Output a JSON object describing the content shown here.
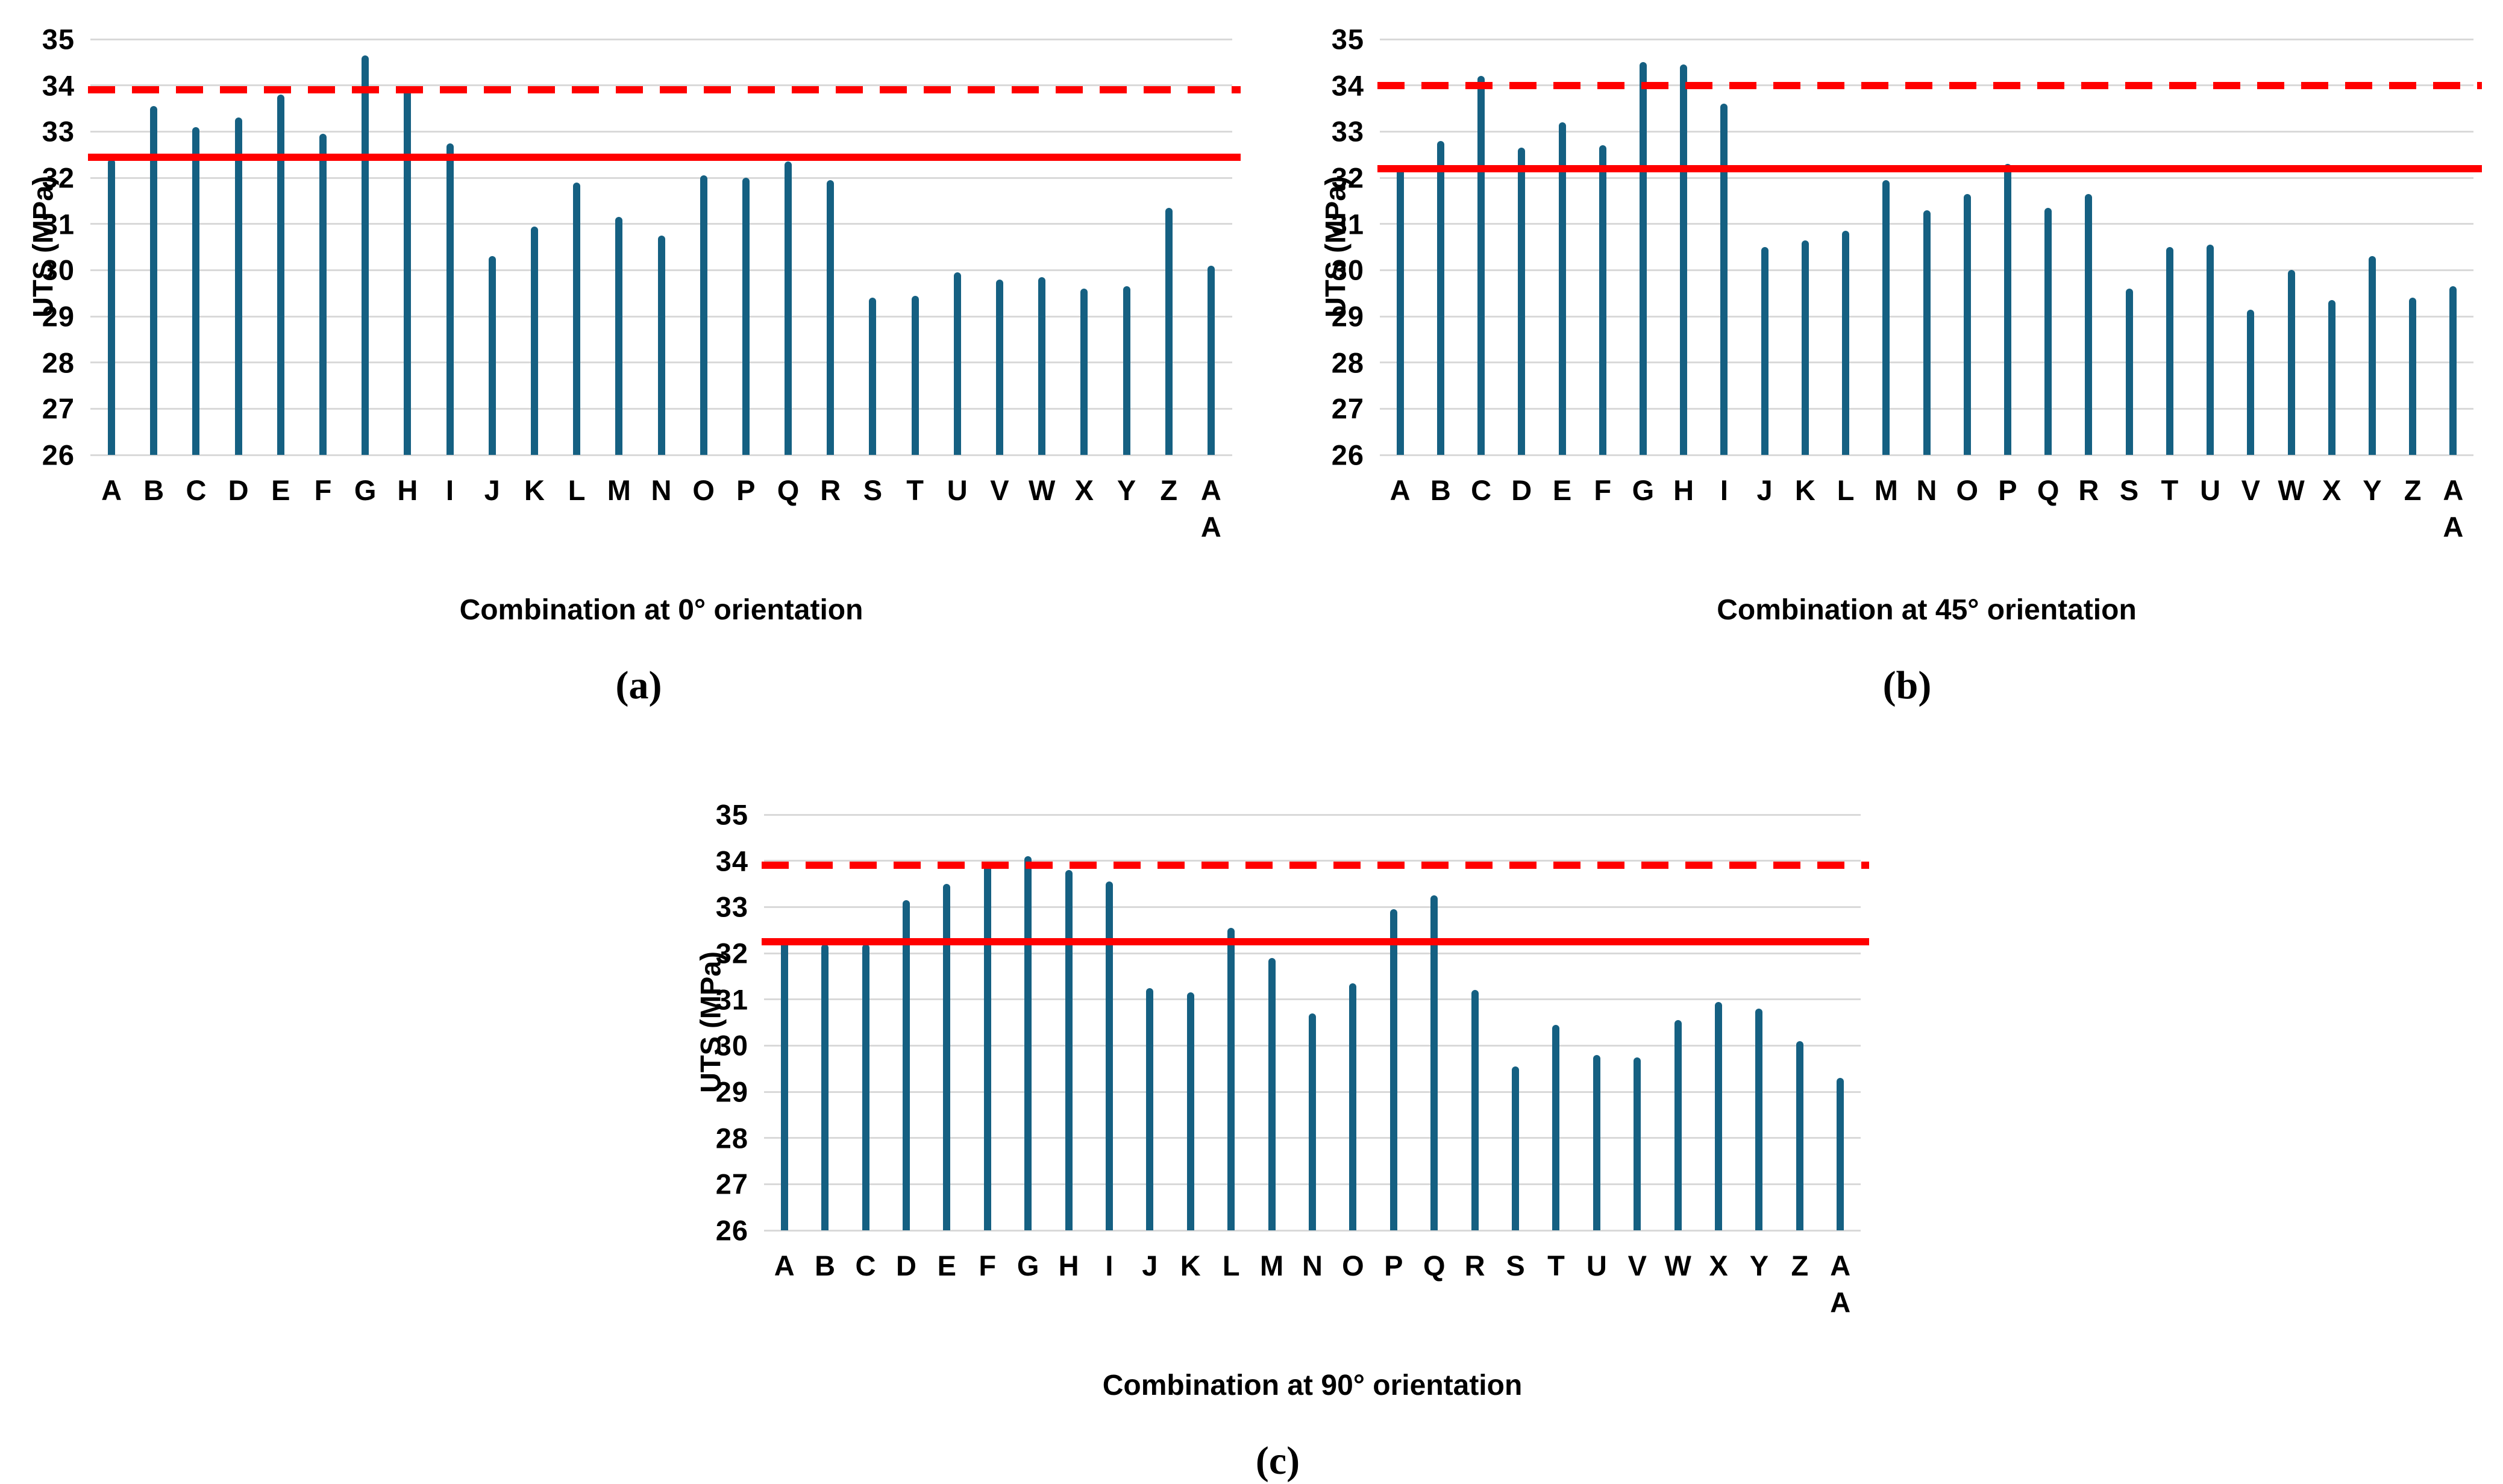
{
  "style": {
    "background_color": "#FFFFFF",
    "bar_color": "#156082",
    "gridline_color": "#D9D9D9",
    "reference_line_color": "#FF0000",
    "text_color": "#000000"
  },
  "chart_data": [
    {
      "id": "a",
      "type": "bar",
      "title": "Combination at 0° orientation",
      "caption": "(a)",
      "ylabel": "UTS (MPa)",
      "ylim": [
        26,
        35
      ],
      "yticks": [
        26,
        27,
        28,
        29,
        30,
        31,
        32,
        33,
        34,
        35
      ],
      "grid": true,
      "legend": false,
      "categories": [
        "A",
        "B",
        "C",
        "D",
        "E",
        "F",
        "G",
        "H",
        "I",
        "J",
        "K",
        "L",
        "M",
        "N",
        "O",
        "P",
        "Q",
        "R",
        "S",
        "T",
        "U",
        "V",
        "W",
        "X",
        "Y",
        "Z",
        "AA"
      ],
      "values": [
        32.4,
        33.55,
        33.1,
        33.3,
        33.8,
        32.95,
        34.65,
        33.95,
        32.75,
        30.3,
        30.95,
        31.9,
        31.15,
        30.75,
        32.05,
        32.0,
        32.35,
        31.95,
        29.4,
        29.45,
        29.95,
        29.8,
        29.85,
        29.6,
        29.65,
        31.35,
        30.1
      ],
      "solid_reference_line": 32.45,
      "dashed_reference_line": 33.9
    },
    {
      "id": "b",
      "type": "bar",
      "title": "Combination at 45° orientation",
      "caption": "(b)",
      "ylabel": "UTS (MPa)",
      "ylim": [
        26,
        35
      ],
      "yticks": [
        26,
        27,
        28,
        29,
        30,
        31,
        32,
        33,
        34,
        35
      ],
      "grid": true,
      "legend": false,
      "categories": [
        "A",
        "B",
        "C",
        "D",
        "E",
        "F",
        "G",
        "H",
        "I",
        "J",
        "K",
        "L",
        "M",
        "N",
        "O",
        "P",
        "Q",
        "R",
        "S",
        "T",
        "U",
        "V",
        "W",
        "X",
        "Y",
        "Z",
        "AA"
      ],
      "values": [
        32.25,
        32.8,
        34.2,
        32.65,
        33.2,
        32.7,
        34.5,
        34.45,
        33.6,
        30.5,
        30.65,
        30.85,
        31.95,
        31.3,
        31.65,
        32.3,
        31.35,
        31.65,
        29.6,
        30.5,
        30.55,
        29.15,
        30.0,
        29.35,
        30.3,
        29.4,
        29.65
      ],
      "solid_reference_line": 32.2,
      "dashed_reference_line": 34.0
    },
    {
      "id": "c",
      "type": "bar",
      "title": "Combination at 90° orientation",
      "caption": "(c)",
      "ylabel": "UTS (MPa)",
      "ylim": [
        26,
        35
      ],
      "yticks": [
        26,
        27,
        28,
        29,
        30,
        31,
        32,
        33,
        34,
        35
      ],
      "grid": true,
      "legend": false,
      "categories": [
        "A",
        "B",
        "C",
        "D",
        "E",
        "F",
        "G",
        "H",
        "I",
        "J",
        "K",
        "L",
        "M",
        "N",
        "O",
        "P",
        "Q",
        "R",
        "S",
        "T",
        "U",
        "V",
        "W",
        "X",
        "Y",
        "Z",
        "AA"
      ],
      "values": [
        32.3,
        32.2,
        32.2,
        33.15,
        33.5,
        33.9,
        34.1,
        33.8,
        33.55,
        31.25,
        31.15,
        32.55,
        31.9,
        30.7,
        31.35,
        32.95,
        33.25,
        31.2,
        29.55,
        30.45,
        29.8,
        29.75,
        30.55,
        30.95,
        30.8,
        30.1,
        29.3
      ],
      "solid_reference_line": 32.25,
      "dashed_reference_line": 33.9
    }
  ]
}
